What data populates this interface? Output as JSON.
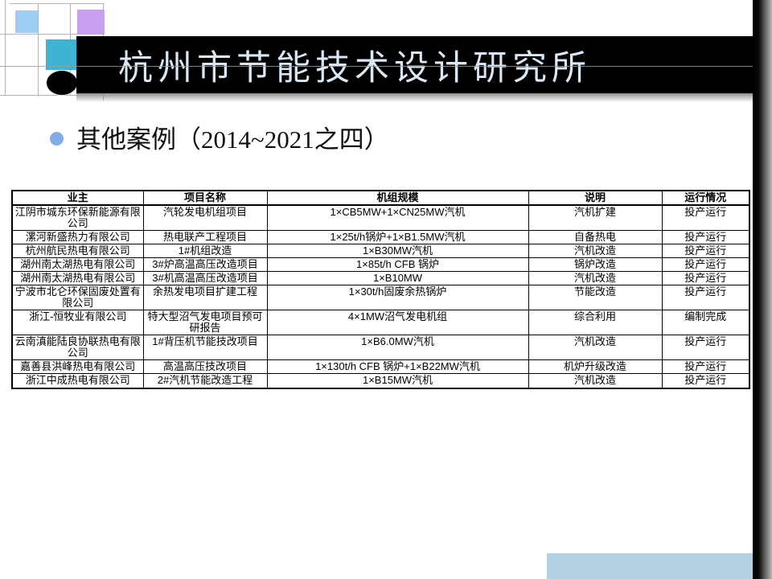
{
  "slide_title": "杭州市节能技术设计研究所",
  "bullet": {
    "text": "其他案例（2014~2021之四）"
  },
  "table": {
    "headers": [
      "业主",
      "项目名称",
      "机组规模",
      "说明",
      "运行情况"
    ],
    "rows": [
      [
        "江阴市城东环保新能源有限公司",
        "汽轮发电机组项目",
        "1×CB5MW+1×CN25MW汽机",
        "汽机扩建",
        "投产运行"
      ],
      [
        "漯河新盛热力有限公司",
        "热电联产工程项目",
        "1×25t/h锅炉+1×B1.5MW汽机",
        "自备热电",
        "投产运行"
      ],
      [
        "杭州航民热电有限公司",
        "1#机组改造",
        "1×B30MW汽机",
        "汽机改造",
        "投产运行"
      ],
      [
        "湖州南太湖热电有限公司",
        "3#炉高温高压改造项目",
        "1×85t/h CFB 锅炉",
        "锅炉改造",
        "投产运行"
      ],
      [
        "湖州南太湖热电有限公司",
        "3#机高温高压改造项目",
        "1×B10MW",
        "汽机改造",
        "投产运行"
      ],
      [
        "宁波市北仑环保固废处置有限公司",
        "余热发电项目扩建工程",
        "1×30t/h固废余热锅炉",
        "节能改造",
        "投产运行"
      ],
      [
        "浙江-恒牧业有限公司",
        "特大型沼气发电项目预可研报告",
        "4×1MW沼气发电机组",
        "综合利用",
        "编制完成"
      ],
      [
        "云南滇能陆良协联热电有限公司",
        "1#背压机节能技改项目",
        "1×B6.0MW汽机",
        "汽机改造",
        "投产运行"
      ],
      [
        "嘉善县洪峰热电有限公司",
        "高温高压技改项目",
        "1×130t/h CFB 锅炉+1×B22MW汽机",
        "机炉升级改造",
        "投产运行"
      ],
      [
        "浙江中成热电有限公司",
        "2#汽机节能改造工程",
        "1×B15MW汽机",
        "汽机改造",
        "投产运行"
      ]
    ]
  },
  "colors": {
    "title_bar": "#000000",
    "title_text": "#d9e8f4",
    "accent_lightblue_square": "#9fcdf5",
    "accent_purple_square": "#c9a0f0",
    "accent_teal_square": "#3fb3d3",
    "bullet_dot": "#82aee8",
    "footer_rect": "#b4d2e4",
    "table_border": "#000000"
  }
}
